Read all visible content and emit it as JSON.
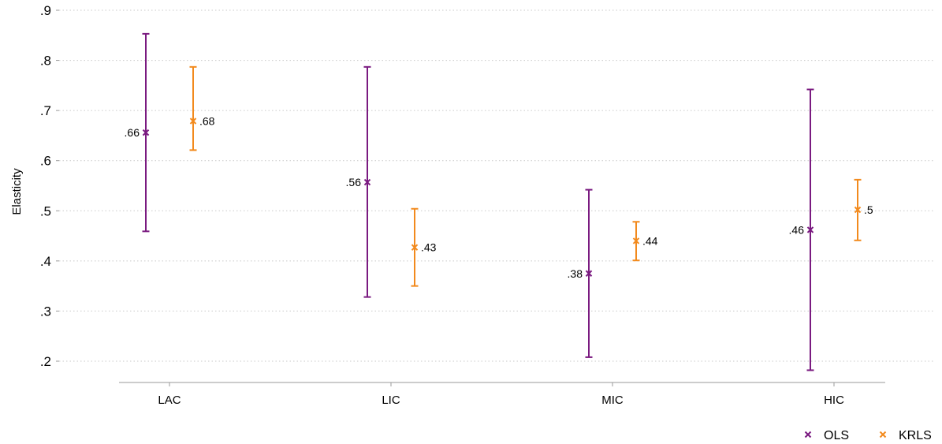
{
  "chart_data": {
    "type": "scatter",
    "subtype": "point-estimates-with-confidence-intervals",
    "title": "",
    "xlabel": "",
    "ylabel": "Elasticity",
    "categories": [
      "LAC",
      "LIC",
      "MIC",
      "HIC"
    ],
    "ylim": [
      0.18,
      0.91
    ],
    "yticks": [
      0.2,
      0.3,
      0.4,
      0.5,
      0.6,
      0.7,
      0.8,
      0.9
    ],
    "ytick_labels": [
      ".2",
      ".3",
      ".4",
      ".5",
      ".6",
      ".7",
      ".8",
      ".9"
    ],
    "grid": true,
    "legend_position": "bottom-right",
    "series": [
      {
        "name": "OLS",
        "color": "#7a1a80",
        "marker": "x",
        "label_side": "left",
        "points": [
          {
            "category": "LAC",
            "value": 0.656,
            "label": ".66",
            "lo": 0.459,
            "hi": 0.853
          },
          {
            "category": "LIC",
            "value": 0.557,
            "label": ".56",
            "lo": 0.328,
            "hi": 0.787
          },
          {
            "category": "MIC",
            "value": 0.375,
            "label": ".38",
            "lo": 0.208,
            "hi": 0.542
          },
          {
            "category": "HIC",
            "value": 0.462,
            "label": ".46",
            "lo": 0.182,
            "hi": 0.742
          }
        ]
      },
      {
        "name": "KRLS",
        "color": "#f28a1d",
        "marker": "x",
        "label_side": "right",
        "points": [
          {
            "category": "LAC",
            "value": 0.679,
            "label": ".68",
            "lo": 0.621,
            "hi": 0.787
          },
          {
            "category": "LIC",
            "value": 0.427,
            "label": ".43",
            "lo": 0.35,
            "hi": 0.504
          },
          {
            "category": "MIC",
            "value": 0.44,
            "label": ".44",
            "lo": 0.401,
            "hi": 0.478
          },
          {
            "category": "HIC",
            "value": 0.502,
            "label": ".5",
            "lo": 0.441,
            "hi": 0.562
          }
        ]
      }
    ]
  }
}
